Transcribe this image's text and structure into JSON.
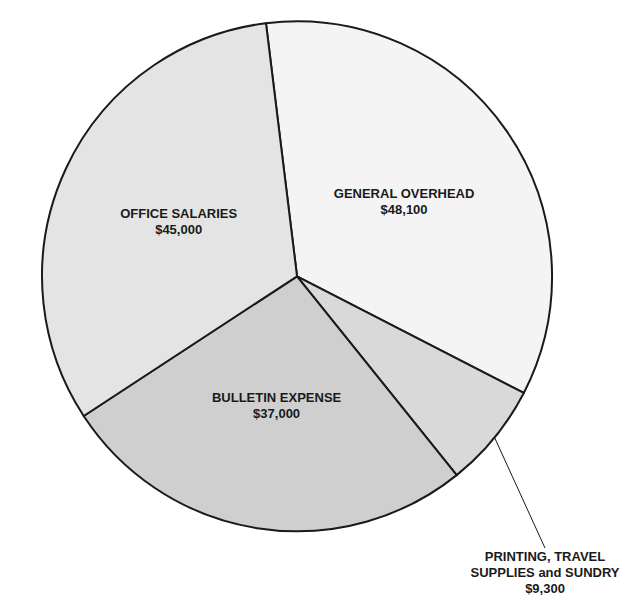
{
  "chart_data": {
    "type": "pie",
    "categories": [
      "GENERAL OVERHEAD",
      "PRINTING, TRAVEL SUPPLIES and SUNDRY",
      "BULLETIN EXPENSE",
      "OFFICE SALARIES"
    ],
    "values": [
      48100,
      9300,
      37000,
      45000
    ],
    "value_labels": [
      "$48,100",
      "$9,300",
      "$37,000",
      "$45,000"
    ],
    "colors": [
      "#f4f4f4",
      "#d9d9d9",
      "#cfcfcf",
      "#e4e4e4"
    ],
    "data_labels": true
  }
}
